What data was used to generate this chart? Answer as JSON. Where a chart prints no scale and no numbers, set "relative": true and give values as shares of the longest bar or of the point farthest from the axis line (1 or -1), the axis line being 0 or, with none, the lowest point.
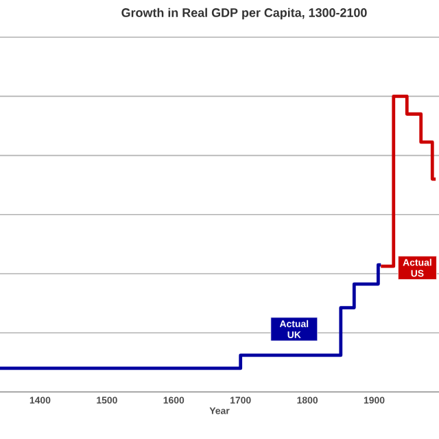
{
  "chart_data": {
    "type": "step",
    "title": "Growth in Real GDP per Capita, 1300-2100",
    "xlabel": "Year",
    "relative": true,
    "grid": "y",
    "xlim": [
      1340,
      1997
    ],
    "xticks": [
      1400,
      1500,
      1600,
      1700,
      1800,
      1900
    ],
    "series": [
      {
        "name": "Actual UK",
        "color": "#0000a0",
        "x": [
          1340,
          1700,
          1850,
          1870,
          1906,
          1910
        ],
        "values": [
          0.08,
          0.124,
          0.285,
          0.365,
          0.43,
          0.43
        ]
      },
      {
        "name": "Actual US",
        "color": "#cc0000",
        "x": [
          1910,
          1929,
          1949,
          1970,
          1987,
          1992
        ],
        "values": [
          0.425,
          1,
          0.94,
          0.845,
          0.72,
          0.72
        ]
      }
    ]
  }
}
